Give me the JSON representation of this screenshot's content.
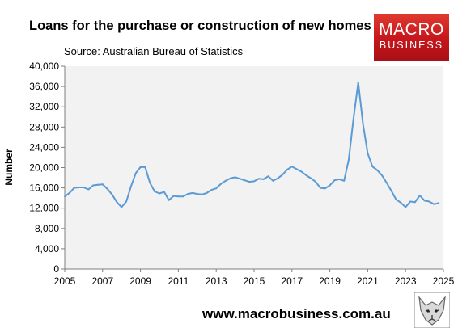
{
  "header": {
    "title": "Loans for the purchase or construction of new homes",
    "subtitle": "Source: Australian Bureau of Statistics"
  },
  "logo": {
    "line1": "MACRO",
    "line2": "BUSINESS"
  },
  "footer": {
    "url": "www.macrobusiness.com.au"
  },
  "colors": {
    "plot_bg": "#f2f2f2",
    "line": "#5b9bd5",
    "logo_red": "#c4161c"
  },
  "chart_data": {
    "type": "line",
    "ylabel": "Number",
    "xlim": [
      2005,
      2025
    ],
    "ylim": [
      0,
      40000
    ],
    "grid": false,
    "x_ticks": [
      "2005",
      "2007",
      "2009",
      "2011",
      "2013",
      "2015",
      "2017",
      "2019",
      "2021",
      "2023",
      "2025"
    ],
    "y_ticks": [
      "0",
      "4,000",
      "8,000",
      "12,000",
      "16,000",
      "20,000",
      "24,000",
      "28,000",
      "32,000",
      "36,000",
      "40,000"
    ],
    "series": [
      {
        "x": [
          2005.0,
          2005.25,
          2005.5,
          2005.75,
          2006.0,
          2006.25,
          2006.5,
          2006.75,
          2007.0,
          2007.25,
          2007.5,
          2007.75,
          2008.0,
          2008.25,
          2008.5,
          2008.75,
          2009.0,
          2009.25,
          2009.5,
          2009.75,
          2010.0,
          2010.25,
          2010.5,
          2010.75,
          2011.0,
          2011.25,
          2011.5,
          2011.75,
          2012.0,
          2012.25,
          2012.5,
          2012.75,
          2013.0,
          2013.25,
          2013.5,
          2013.75,
          2014.0,
          2014.25,
          2014.5,
          2014.75,
          2015.0,
          2015.25,
          2015.5,
          2015.75,
          2016.0,
          2016.25,
          2016.5,
          2016.75,
          2017.0,
          2017.25,
          2017.5,
          2017.75,
          2018.0,
          2018.25,
          2018.5,
          2018.75,
          2019.0,
          2019.25,
          2019.5,
          2019.75,
          2020.0,
          2020.25,
          2020.5,
          2020.75,
          2021.0,
          2021.25,
          2021.5,
          2021.75,
          2022.0,
          2022.25,
          2022.5,
          2022.75,
          2023.0,
          2023.25,
          2023.5,
          2023.75,
          2024.0,
          2024.25,
          2024.5,
          2024.75
        ],
        "y": [
          14300,
          15000,
          16000,
          16100,
          16100,
          15700,
          16500,
          16600,
          16700,
          15800,
          14700,
          13200,
          12200,
          13300,
          16300,
          18900,
          20100,
          20100,
          17000,
          15300,
          14900,
          15200,
          13600,
          14400,
          14300,
          14300,
          14800,
          15000,
          14800,
          14700,
          15000,
          15600,
          15900,
          16800,
          17400,
          17900,
          18100,
          17800,
          17500,
          17200,
          17300,
          17800,
          17700,
          18300,
          17400,
          17900,
          18600,
          19600,
          20200,
          19700,
          19200,
          18500,
          17900,
          17200,
          16000,
          15900,
          16500,
          17500,
          17700,
          17400,
          21600,
          29600,
          36800,
          28600,
          22800,
          20200,
          19500,
          18500,
          17000,
          15400,
          13700,
          13100,
          12200,
          13300,
          13200,
          14500,
          13500,
          13300,
          12800,
          13000
        ]
      }
    ]
  }
}
